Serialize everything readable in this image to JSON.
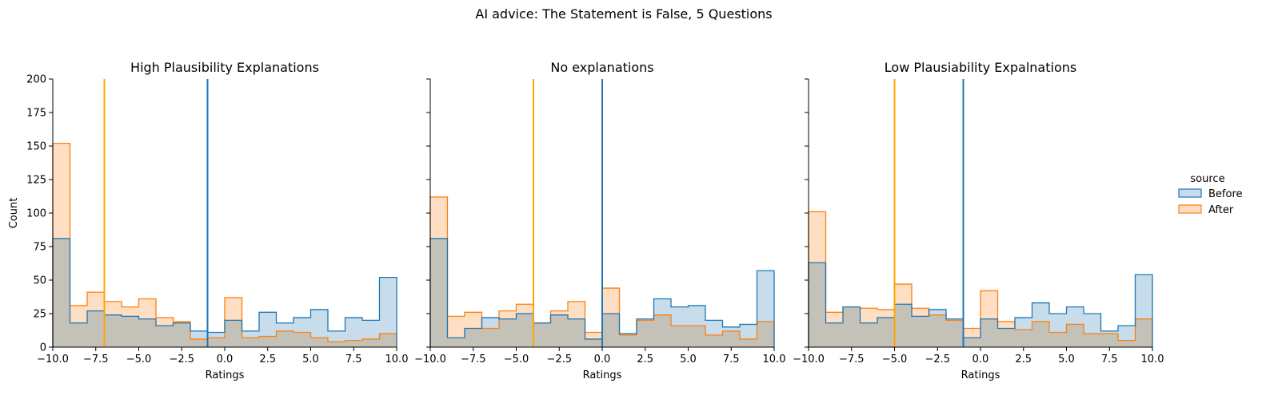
{
  "suptitle": "AI advice: The Statement is False, 5 Questions",
  "legend": {
    "title": "source",
    "placement": "right",
    "entries": [
      {
        "label": "Before",
        "color": "#1f77b4",
        "fill": "#c6dbef"
      },
      {
        "label": "After",
        "color": "#ff7f0e",
        "fill": "#ffdcc0"
      }
    ]
  },
  "colors": {
    "before": "#1f77b4",
    "after": "#ff7f0e",
    "overlap": "#c4c2b8",
    "after_mean_line": "#ffa500"
  },
  "chart_data": [
    {
      "type": "histogram",
      "title": "High Plausibility Explanations",
      "xlabel": "Ratings",
      "ylabel": "Count",
      "xlim": [
        -10,
        10
      ],
      "ylim": [
        0,
        200
      ],
      "xticks": [
        "−10.0",
        "−7.5",
        "−5.0",
        "−2.5",
        "0.0",
        "2.5",
        "5.0",
        "7.5",
        "10.0"
      ],
      "yticks": [
        "0",
        "25",
        "50",
        "75",
        "100",
        "125",
        "150",
        "175",
        "200"
      ],
      "bin_edges": [
        -10,
        -9,
        -8,
        -7,
        -6,
        -5,
        -4,
        -3,
        -2,
        -1,
        0,
        1,
        2,
        3,
        4,
        5,
        6,
        7,
        8,
        9,
        10
      ],
      "series": [
        {
          "name": "Before",
          "values": [
            81,
            18,
            27,
            24,
            23,
            21,
            16,
            18,
            12,
            11,
            20,
            12,
            26,
            18,
            22,
            28,
            12,
            22,
            20,
            52
          ]
        },
        {
          "name": "After",
          "values": [
            152,
            31,
            41,
            34,
            30,
            36,
            22,
            19,
            6,
            7,
            37,
            7,
            8,
            12,
            11,
            7,
            4,
            5,
            6,
            10
          ]
        }
      ],
      "vlines": [
        {
          "x": -7,
          "series": "After"
        },
        {
          "x": -1,
          "series": "Before"
        }
      ]
    },
    {
      "type": "histogram",
      "title": "No explanations",
      "xlabel": "Ratings",
      "ylabel": "",
      "xlim": [
        -10,
        10
      ],
      "ylim": [
        0,
        200
      ],
      "xticks": [
        "−10.0",
        "−7.5",
        "−5.0",
        "−2.5",
        "0.0",
        "2.5",
        "5.0",
        "7.5",
        "10.0"
      ],
      "yticks": [
        "",
        "",
        "",
        "",
        "",
        "",
        "",
        "",
        ""
      ],
      "bin_edges": [
        -10,
        -9,
        -8,
        -7,
        -6,
        -5,
        -4,
        -3,
        -2,
        -1,
        0,
        1,
        2,
        3,
        4,
        5,
        6,
        7,
        8,
        9,
        10
      ],
      "series": [
        {
          "name": "Before",
          "values": [
            81,
            7,
            14,
            22,
            21,
            25,
            18,
            24,
            21,
            6,
            25,
            10,
            21,
            36,
            30,
            31,
            20,
            15,
            17,
            57
          ]
        },
        {
          "name": "After",
          "values": [
            112,
            23,
            26,
            14,
            27,
            32,
            18,
            27,
            34,
            11,
            44,
            9,
            20,
            24,
            16,
            16,
            9,
            12,
            6,
            19
          ]
        }
      ],
      "vlines": [
        {
          "x": -4,
          "series": "After"
        },
        {
          "x": 0,
          "series": "Before"
        }
      ]
    },
    {
      "type": "histogram",
      "title": "Low Plausiability Expalnations",
      "xlabel": "Ratings",
      "ylabel": "",
      "xlim": [
        -10,
        10
      ],
      "ylim": [
        0,
        200
      ],
      "xticks": [
        "−10.0",
        "−7.5",
        "−5.0",
        "−2.5",
        "0.0",
        "2.5",
        "5.0",
        "7.5",
        "10.0"
      ],
      "yticks": [
        "",
        "",
        "",
        "",
        "",
        "",
        "",
        "",
        ""
      ],
      "bin_edges": [
        -10,
        -9,
        -8,
        -7,
        -6,
        -5,
        -4,
        -3,
        -2,
        -1,
        0,
        1,
        2,
        3,
        4,
        5,
        6,
        7,
        8,
        9,
        10
      ],
      "series": [
        {
          "name": "Before",
          "values": [
            63,
            18,
            30,
            18,
            22,
            32,
            23,
            28,
            21,
            7,
            21,
            14,
            22,
            33,
            25,
            30,
            25,
            12,
            16,
            54
          ]
        },
        {
          "name": "After",
          "values": [
            101,
            26,
            30,
            29,
            28,
            47,
            29,
            24,
            20,
            14,
            42,
            19,
            13,
            19,
            11,
            17,
            10,
            10,
            5,
            21
          ]
        }
      ],
      "vlines": [
        {
          "x": -5,
          "series": "After"
        },
        {
          "x": -1,
          "series": "Before"
        }
      ]
    }
  ]
}
